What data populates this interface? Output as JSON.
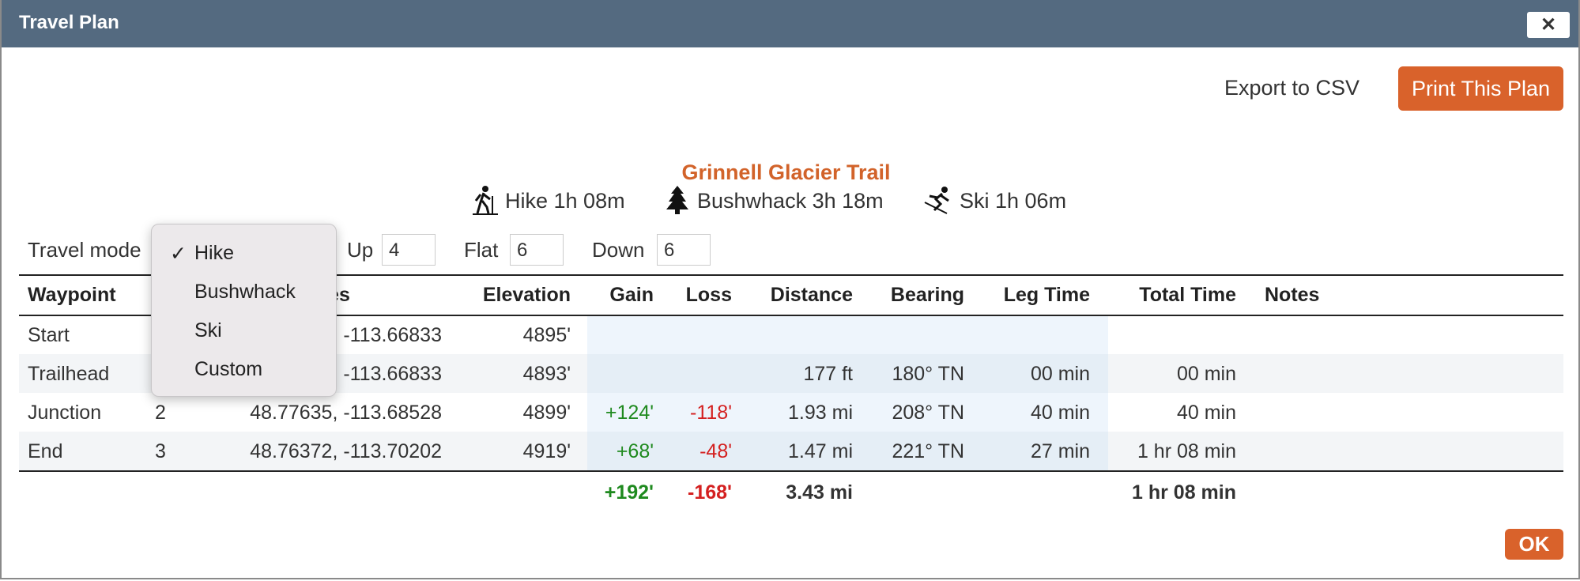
{
  "dialog": {
    "title": "Travel Plan",
    "close": "✕"
  },
  "actions": {
    "export": "Export to CSV",
    "print": "Print This Plan"
  },
  "plan": {
    "name": "Grinnell Glacier Trail",
    "summaries": [
      "Hike 1h 08m",
      "Bushwhack 3h 18m",
      "Ski 1h 06m"
    ]
  },
  "settings": {
    "mode_label": "Travel mode",
    "up_label": "Up",
    "up": "4",
    "flat_label": "Flat",
    "flat": "6",
    "down_label": "Down",
    "down": "6"
  },
  "menu": {
    "check": "✓",
    "items": [
      "Hike",
      "Bushwhack",
      "Ski",
      "Custom"
    ]
  },
  "table": {
    "headers": [
      "Waypoint",
      null,
      "Coordinates",
      "Elevation",
      "Gain",
      "Loss",
      "Distance",
      "Bearing",
      "Leg Time",
      "Total Time",
      "Notes"
    ],
    "rows": [
      [
        "Start",
        null,
        "-113.66833",
        "4895'",
        null,
        null,
        null,
        null,
        null,
        null,
        null
      ],
      [
        "Trailhead",
        null,
        "-113.66833",
        "4893'",
        null,
        null,
        "177 ft",
        "180° TN",
        "00 min",
        "00 min",
        null
      ],
      [
        "Junction",
        "2",
        "48.77635, -113.68528",
        "4899'",
        "+124'",
        "-118'",
        "1.93 mi",
        "208° TN",
        "40 min",
        "40 min",
        null
      ],
      [
        "End",
        "3",
        "48.76372, -113.70202",
        "4919'",
        "+68'",
        "-48'",
        "1.47 mi",
        "221° TN",
        "27 min",
        "1 hr 08 min",
        null
      ]
    ],
    "totals": {
      "gain": "+192'",
      "loss": "-168'",
      "distance": "3.43 mi",
      "total_time": "1 hr 08 min"
    }
  },
  "ok": "OK"
}
